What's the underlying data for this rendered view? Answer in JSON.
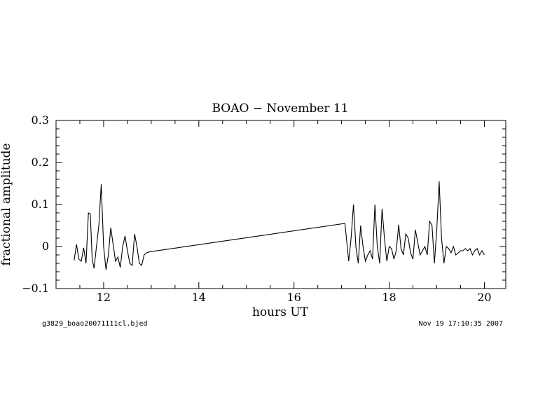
{
  "chart_data": {
    "type": "line",
    "title": "BOAO − November 11",
    "xlabel": "hours UT",
    "ylabel": "fractional amplitude",
    "xlim": [
      11.0,
      20.45
    ],
    "ylim": [
      -0.1,
      0.3
    ],
    "xticks": [
      12,
      14,
      16,
      18,
      20
    ],
    "xtick_labels": [
      "12",
      "14",
      "16",
      "18",
      "20"
    ],
    "yticks": [
      -0.1,
      0,
      0.1,
      0.2,
      0.3
    ],
    "ytick_labels": [
      "−0.1",
      "0",
      "0.1",
      "0.2",
      "0.3"
    ],
    "grid": false,
    "series": [
      {
        "x": [
          11.38,
          11.43,
          11.48,
          11.53,
          11.58,
          11.63,
          11.68,
          11.72,
          11.76,
          11.8,
          11.85,
          11.9,
          11.95,
          12.0,
          12.05,
          12.1,
          12.15,
          12.2,
          12.25,
          12.3,
          12.35,
          12.4,
          12.45,
          12.5,
          12.55,
          12.6,
          12.65,
          12.7,
          12.75,
          12.8,
          12.85,
          12.9,
          12.95,
          13.0,
          17.07,
          17.15,
          17.2,
          17.25,
          17.3,
          17.35,
          17.4,
          17.45,
          17.5,
          17.55,
          17.6,
          17.65,
          17.7,
          17.75,
          17.8,
          17.85,
          17.9,
          17.95,
          18.0,
          18.05,
          18.1,
          18.15,
          18.2,
          18.25,
          18.3,
          18.35,
          18.4,
          18.45,
          18.5,
          18.55,
          18.6,
          18.65,
          18.7,
          18.75,
          18.8,
          18.85,
          18.9,
          18.95,
          19.0,
          19.05,
          19.1,
          19.15,
          19.2,
          19.25,
          19.3,
          19.35,
          19.4,
          19.45,
          19.5,
          19.55,
          19.6,
          19.65,
          19.7,
          19.75,
          19.8,
          19.85,
          19.9,
          19.95,
          20.0
        ],
        "y": [
          -0.033,
          0.005,
          -0.03,
          -0.035,
          -0.003,
          -0.04,
          0.08,
          0.078,
          -0.03,
          -0.052,
          0.0,
          0.05,
          0.148,
          0.0,
          -0.055,
          -0.02,
          0.045,
          0.005,
          -0.035,
          -0.025,
          -0.05,
          0.0,
          0.025,
          -0.01,
          -0.04,
          -0.045,
          0.03,
          0.0,
          -0.04,
          -0.045,
          -0.02,
          -0.015,
          -0.013,
          -0.012,
          0.055,
          -0.035,
          0.02,
          0.1,
          0.0,
          -0.04,
          0.05,
          0.0,
          -0.035,
          -0.02,
          -0.01,
          -0.03,
          0.1,
          0.0,
          -0.04,
          0.09,
          0.02,
          -0.035,
          0.0,
          -0.005,
          -0.03,
          -0.01,
          0.052,
          -0.005,
          -0.02,
          0.03,
          0.02,
          -0.015,
          -0.03,
          0.04,
          0.01,
          -0.02,
          -0.01,
          0.0,
          -0.02,
          0.06,
          0.05,
          -0.04,
          0.04,
          0.155,
          0.02,
          -0.04,
          0.0,
          -0.005,
          -0.015,
          0.0,
          -0.02,
          -0.015,
          -0.01,
          -0.01,
          -0.005,
          -0.01,
          -0.005,
          -0.02,
          -0.01,
          -0.005,
          -0.02,
          -0.01,
          -0.02
        ]
      }
    ]
  },
  "footer": {
    "left": "g3829_boao20071111cl.bjed",
    "right": "Nov 19 17:10:35 2007"
  }
}
